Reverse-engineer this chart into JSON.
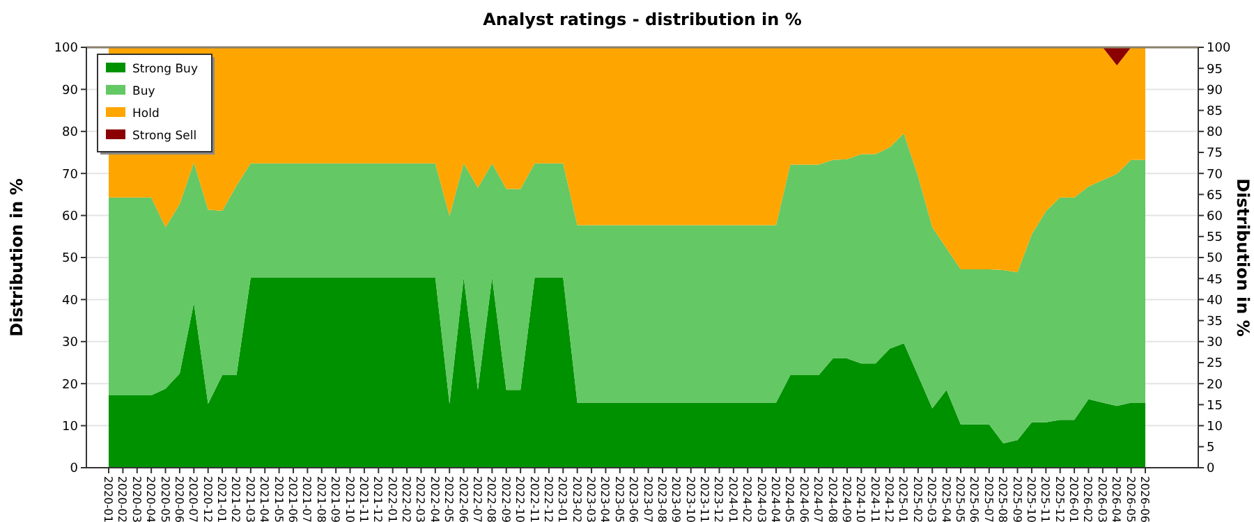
{
  "chart_data": {
    "type": "area",
    "stacked": true,
    "title": "Analyst ratings - distribution in %",
    "ylabel": "Distribution in %",
    "y2label": "Distribution in %",
    "categories": [
      "2020-01",
      "2020-02",
      "2020-03",
      "2020-04",
      "2020-05",
      "2020-06",
      "2020-07",
      "2020-12",
      "2021-01",
      "2021-02",
      "2021-03",
      "2021-04",
      "2021-05",
      "2021-06",
      "2021-07",
      "2021-08",
      "2021-09",
      "2021-10",
      "2021-11",
      "2021-12",
      "2022-01",
      "2022-02",
      "2022-03",
      "2022-04",
      "2022-05",
      "2022-06",
      "2022-07",
      "2022-08",
      "2022-09",
      "2022-10",
      "2022-11",
      "2022-12",
      "2023-01",
      "2023-02",
      "2023-03",
      "2023-04",
      "2023-05",
      "2023-06",
      "2023-07",
      "2023-08",
      "2023-09",
      "2023-10",
      "2023-11",
      "2023-12",
      "2024-01",
      "2024-02",
      "2024-03",
      "2024-04",
      "2024-05",
      "2024-06",
      "2024-07",
      "2024-08",
      "2024-09",
      "2024-10",
      "2024-11",
      "2024-12",
      "2025-01",
      "2025-02",
      "2025-03",
      "2025-04",
      "2025-05",
      "2025-06",
      "2025-07",
      "2025-08",
      "2025-09",
      "2025-10",
      "2025-11",
      "2025-12",
      "2026-01",
      "2026-02",
      "2026-03",
      "2026-04",
      "2026-05",
      "2026-06"
    ],
    "series": [
      {
        "name": "Strong Buy",
        "color": "#009100",
        "values": [
          17.2,
          17.2,
          17.2,
          17.2,
          18.8,
          22.4,
          39.2,
          15.2,
          22,
          22,
          45.3,
          45.3,
          45.3,
          45.3,
          45.3,
          45.3,
          45.3,
          45.3,
          45.3,
          45.3,
          45.3,
          45.3,
          45.3,
          45.3,
          15.2,
          45.3,
          18.5,
          45.3,
          18.5,
          18.5,
          45.3,
          45.3,
          45.3,
          15.5,
          15.5,
          15.5,
          15.5,
          15.5,
          15.5,
          15.5,
          15.5,
          15.5,
          15.5,
          15.5,
          15.5,
          15.5,
          15.5,
          15.5,
          22,
          22,
          22,
          26,
          26,
          24.8,
          24.8,
          28.3,
          29.6,
          21.9,
          14.1,
          18.5,
          10.3,
          10.3,
          10.3,
          5.8,
          6.6,
          10.8,
          10.8,
          11.4,
          11.4,
          16.3,
          15.5,
          14.7,
          15.5,
          15.5
        ]
      },
      {
        "name": "Buy",
        "color": "#64c864",
        "values": [
          47.1,
          47.1,
          47.1,
          47.1,
          38.4,
          40.3,
          33.4,
          46.2,
          39.1,
          45.1,
          27.1,
          27.1,
          27.1,
          27.1,
          27.1,
          27.1,
          27.1,
          27.1,
          27.1,
          27.1,
          27.1,
          27.1,
          27.1,
          27.1,
          44.7,
          27.1,
          48.1,
          27.1,
          47.8,
          47.8,
          27.1,
          27.1,
          27.1,
          42.2,
          42.2,
          42.2,
          42.2,
          42.2,
          42.2,
          42.2,
          42.2,
          42.2,
          42.2,
          42.2,
          42.2,
          42.2,
          42.2,
          42.2,
          50.1,
          50.1,
          50.1,
          47.2,
          47.4,
          49.8,
          49.8,
          47.9,
          49.9,
          47.4,
          43.1,
          33.7,
          36.9,
          36.9,
          36.9,
          41.2,
          39.9,
          44.7,
          50.2,
          52.9,
          52.9,
          50.6,
          52.9,
          55.2,
          57.7,
          57.7
        ]
      },
      {
        "name": "Hold",
        "color": "#ffa500",
        "values": [
          35.7,
          35.7,
          35.7,
          35.7,
          42.8,
          37.3,
          27.4,
          38.6,
          38.9,
          32.9,
          27.6,
          27.6,
          27.6,
          27.6,
          27.6,
          27.6,
          27.6,
          27.6,
          27.6,
          27.6,
          27.6,
          27.6,
          27.6,
          27.6,
          40.1,
          27.6,
          33.4,
          27.6,
          33.7,
          33.7,
          27.6,
          27.6,
          27.6,
          42.3,
          42.3,
          42.3,
          42.3,
          42.3,
          42.3,
          42.3,
          42.3,
          42.3,
          42.3,
          42.3,
          42.3,
          42.3,
          42.3,
          42.3,
          27.9,
          27.9,
          27.9,
          26.8,
          26.6,
          25.4,
          25.4,
          23.8,
          20.5,
          30.7,
          42.8,
          47.8,
          52.8,
          52.8,
          52.8,
          53,
          53.5,
          44.5,
          39,
          35.7,
          35.7,
          33.1,
          31.6,
          25.8,
          26.8,
          26.8
        ]
      },
      {
        "name": "Strong Sell",
        "color": "#8b0000",
        "values": [
          0,
          0,
          0,
          0,
          0,
          0,
          0,
          0,
          0,
          0,
          0,
          0,
          0,
          0,
          0,
          0,
          0,
          0,
          0,
          0,
          0,
          0,
          0,
          0,
          0,
          0,
          0,
          0,
          0,
          0,
          0,
          0,
          0,
          0,
          0,
          0,
          0,
          0,
          0,
          0,
          0,
          0,
          0,
          0,
          0,
          0,
          0,
          0,
          0,
          0,
          0,
          0,
          0,
          0,
          0,
          0,
          0,
          0,
          0,
          0,
          0,
          0,
          0,
          0,
          0,
          0,
          0,
          0,
          0,
          0,
          0,
          4.3,
          0,
          0
        ]
      }
    ],
    "ylim": [
      0,
      100
    ],
    "yticks": [
      0,
      10,
      20,
      30,
      40,
      50,
      60,
      70,
      80,
      90,
      100
    ],
    "y2lim": [
      0,
      100
    ],
    "y2ticks": [
      0,
      5,
      10,
      15,
      20,
      25,
      30,
      35,
      40,
      45,
      50,
      55,
      60,
      65,
      70,
      75,
      80,
      85,
      90,
      95,
      100
    ],
    "grid": "y",
    "legend": "top left"
  }
}
